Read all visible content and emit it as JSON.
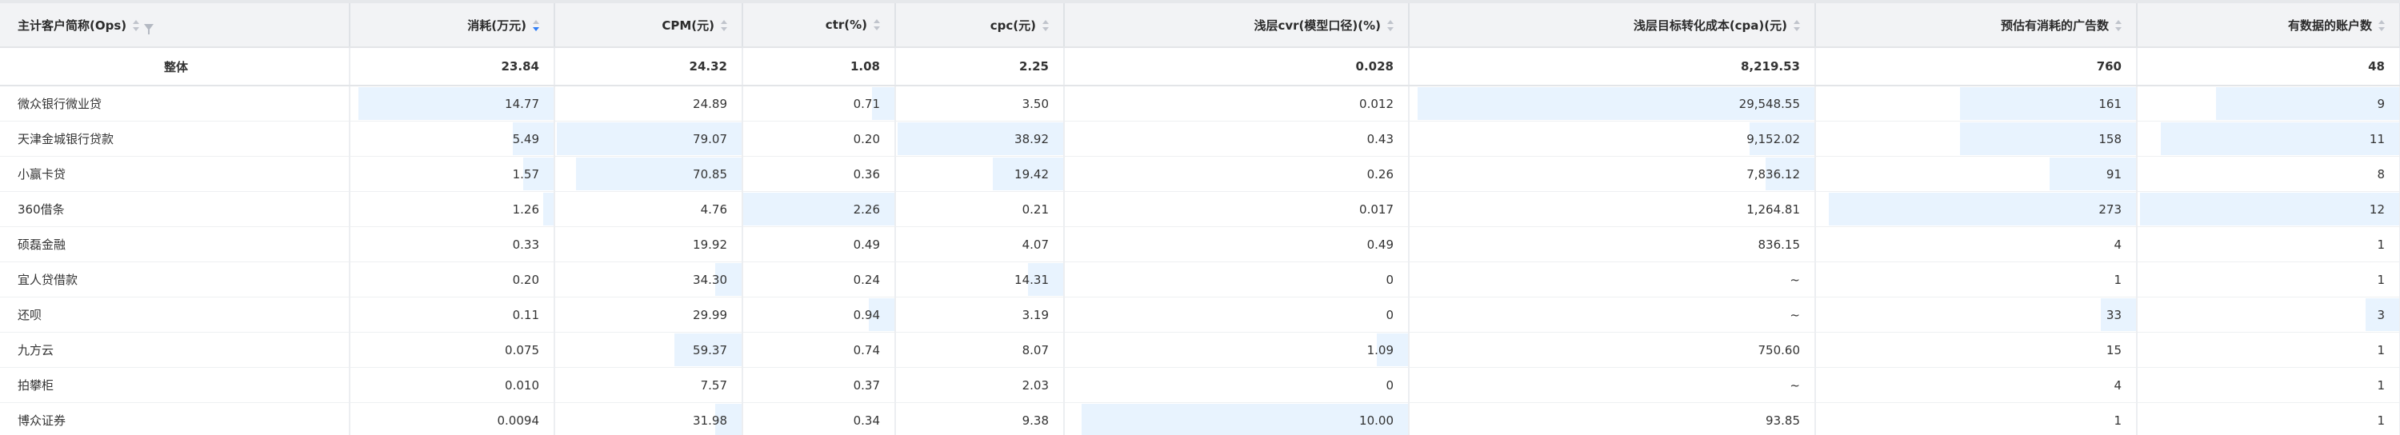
{
  "columns": [
    {
      "label": "主计客户简称(Ops)",
      "key": "name",
      "sortable": true,
      "filterable": true
    },
    {
      "label": "消耗(万元)",
      "key": "cost",
      "sortable": true,
      "active_sort": "desc"
    },
    {
      "label": "CPM(元)",
      "key": "cpm",
      "sortable": true
    },
    {
      "label": "ctr(%)",
      "key": "ctr",
      "sortable": true
    },
    {
      "label": "cpc(元)",
      "key": "cpc",
      "sortable": true
    },
    {
      "label": "浅层cvr(模型口径)(%)",
      "key": "cvr",
      "sortable": true
    },
    {
      "label": "浅层目标转化成本(cpa)(元)",
      "key": "cpa",
      "sortable": true
    },
    {
      "label": "预估有消耗的广告数",
      "key": "ads",
      "sortable": true
    },
    {
      "label": "有数据的账户数",
      "key": "accounts",
      "sortable": true
    }
  ],
  "total_row": {
    "name": "整体",
    "cost": "23.84",
    "cpm": "24.32",
    "ctr": "1.08",
    "cpc": "2.25",
    "cvr": "0.028",
    "cpa": "8,219.53",
    "ads": "760",
    "accounts": "48"
  },
  "rows": [
    {
      "name": "微众银行微业贷",
      "cost": "14.77",
      "cpm": "24.89",
      "ctr": "0.71",
      "cpc": "3.50",
      "cvr": "0.012",
      "cpa": "29,548.55",
      "ads": "161",
      "accounts": "9"
    },
    {
      "name": "天津金城银行贷款",
      "cost": "5.49",
      "cpm": "79.07",
      "ctr": "0.20",
      "cpc": "38.92",
      "cvr": "0.43",
      "cpa": "9,152.02",
      "ads": "158",
      "accounts": "11"
    },
    {
      "name": "小赢卡贷",
      "cost": "1.57",
      "cpm": "70.85",
      "ctr": "0.36",
      "cpc": "19.42",
      "cvr": "0.26",
      "cpa": "7,836.12",
      "ads": "91",
      "accounts": "8"
    },
    {
      "name": "360借条",
      "cost": "1.26",
      "cpm": "4.76",
      "ctr": "2.26",
      "cpc": "0.21",
      "cvr": "0.017",
      "cpa": "1,264.81",
      "ads": "273",
      "accounts": "12"
    },
    {
      "name": "硕磊金融",
      "cost": "0.33",
      "cpm": "19.92",
      "ctr": "0.49",
      "cpc": "4.07",
      "cvr": "0.49",
      "cpa": "836.15",
      "ads": "4",
      "accounts": "1"
    },
    {
      "name": "宜人贷借款",
      "cost": "0.20",
      "cpm": "34.30",
      "ctr": "0.24",
      "cpc": "14.31",
      "cvr": "0",
      "cpa": "~",
      "ads": "1",
      "accounts": "1"
    },
    {
      "name": "还呗",
      "cost": "0.11",
      "cpm": "29.99",
      "ctr": "0.94",
      "cpc": "3.19",
      "cvr": "0",
      "cpa": "~",
      "ads": "33",
      "accounts": "3"
    },
    {
      "name": "九方云",
      "cost": "0.075",
      "cpm": "59.37",
      "ctr": "0.74",
      "cpc": "8.07",
      "cvr": "1.09",
      "cpa": "750.60",
      "ads": "15",
      "accounts": "1"
    },
    {
      "name": "拍攀柜",
      "cost": "0.010",
      "cpm": "7.57",
      "ctr": "0.37",
      "cpc": "2.03",
      "cvr": "0",
      "cpa": "~",
      "ads": "4",
      "accounts": "1"
    },
    {
      "name": "博众证券",
      "cost": "0.0094",
      "cpm": "31.98",
      "ctr": "0.34",
      "cpc": "9.38",
      "cvr": "10.00",
      "cpa": "93.85",
      "ads": "1",
      "accounts": "1"
    }
  ],
  "bar_fill": {
    "cost": [
      0.96,
      0.2,
      0.15,
      0.05,
      0,
      0,
      0,
      0,
      0,
      0
    ],
    "cpm": [
      0,
      0.99,
      0.89,
      0,
      0,
      0.14,
      0,
      0.36,
      0,
      0.14
    ],
    "ctr": [
      0.15,
      0,
      0,
      1.0,
      0,
      0,
      0.17,
      0,
      0,
      0
    ],
    "cpc": [
      0,
      0.99,
      0.42,
      0,
      0,
      0.21,
      0,
      0,
      0,
      0
    ],
    "cvr": [
      0,
      0,
      0,
      0,
      0,
      0,
      0,
      0.09,
      0,
      0.95
    ],
    "cpa": [
      0.98,
      0.16,
      0.12,
      0,
      0,
      0,
      0,
      0,
      0,
      0
    ],
    "ads": [
      0.55,
      0.55,
      0.27,
      0.96,
      0,
      0,
      0.11,
      0,
      0,
      0
    ],
    "accounts": [
      0.7,
      0.91,
      0,
      0.99,
      0,
      0,
      0.13,
      0,
      0,
      0
    ]
  },
  "colors": {
    "bar": "#e8f3fe",
    "header_bg": "#f2f3f5",
    "active_sort": "#2f7df6"
  }
}
